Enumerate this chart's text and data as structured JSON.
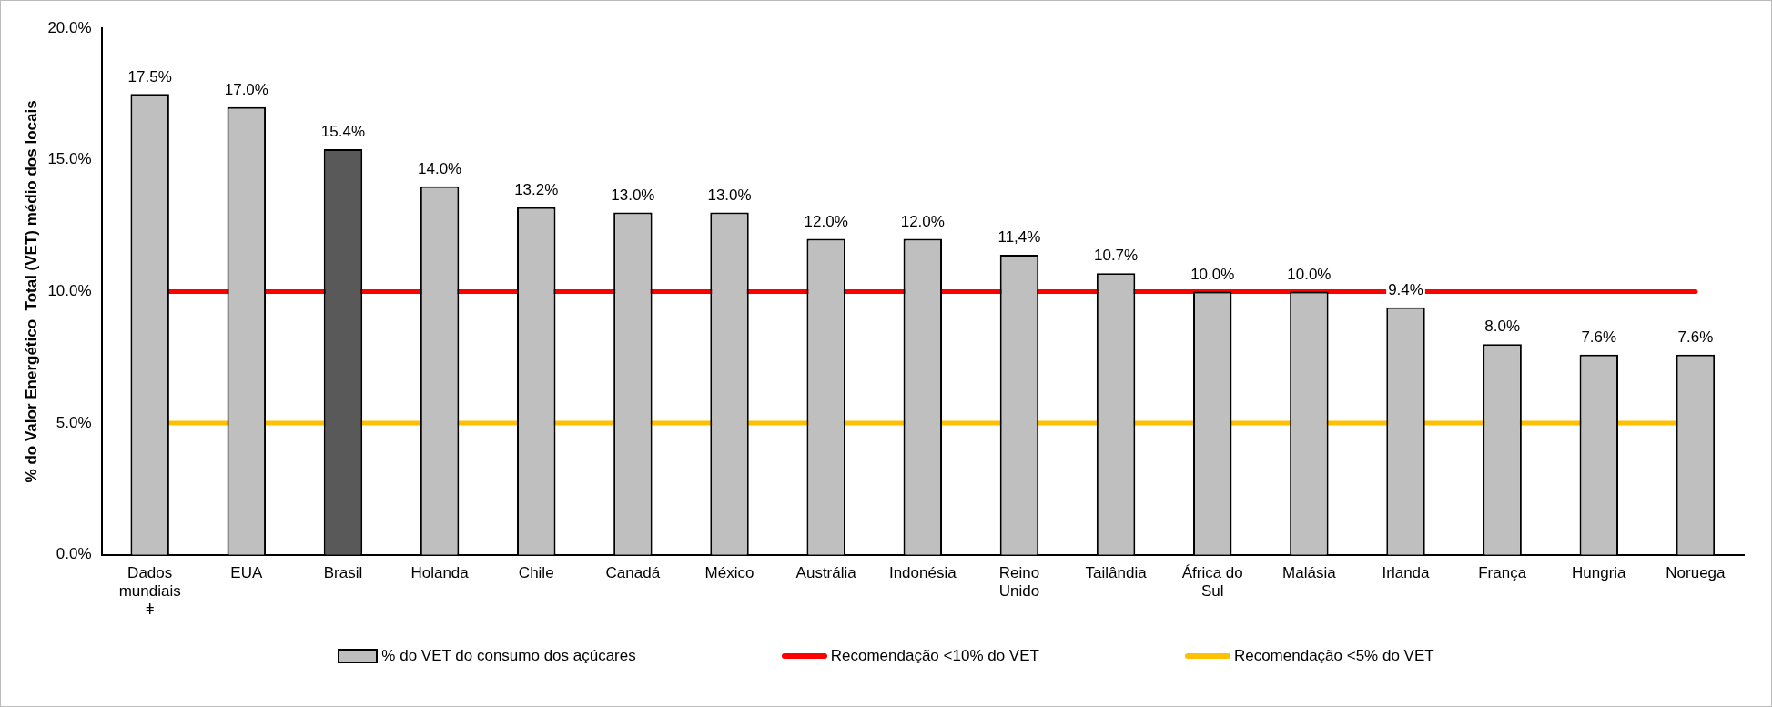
{
  "chart_data": {
    "type": "bar",
    "ylabel": "% do Valor Energético  Total (VET) médio dos locais",
    "categories": [
      "Dados mundiais ǂ",
      "EUA",
      "Brasil",
      "Holanda",
      "Chile",
      "Canadá",
      "México",
      "Austrália",
      "Indonésia",
      "Reino Unido",
      "Tailândia",
      "África do Sul",
      "Malásia",
      "Irlanda",
      "França",
      "Hungria",
      "Noruega"
    ],
    "series": [
      {
        "name": "% do VET do consumo dos açúcares",
        "values": [
          17.5,
          17.0,
          15.4,
          14.0,
          13.2,
          13.0,
          13.0,
          12.0,
          12.0,
          11.4,
          10.7,
          10.0,
          10.0,
          9.4,
          8.0,
          7.6,
          7.6
        ],
        "colors": [
          "#bfbfbf",
          "#bfbfbf",
          "#595959",
          "#bfbfbf",
          "#bfbfbf",
          "#bfbfbf",
          "#bfbfbf",
          "#bfbfbf",
          "#bfbfbf",
          "#bfbfbf",
          "#bfbfbf",
          "#bfbfbf",
          "#bfbfbf",
          "#bfbfbf",
          "#bfbfbf",
          "#bfbfbf",
          "#bfbfbf"
        ],
        "value_labels": [
          "17.5%",
          "17.0%",
          "15.4%",
          "14.0%",
          "13.2%",
          "13.0%",
          "13.0%",
          "12.0%",
          "12.0%",
          "11,4%",
          "10.7%",
          "10.0%",
          "10.0%",
          "9.4%",
          "8.0%",
          "7.6%",
          "7.6%"
        ]
      }
    ],
    "ref_lines": [
      {
        "axis": "y",
        "value": 10,
        "label": "Recomendação <10% do VET",
        "color": "#ff0000"
      },
      {
        "axis": "y",
        "value": 5,
        "label": "Recomendação <5% do VET",
        "color": "#ffc000"
      }
    ],
    "ylim": [
      0,
      20
    ],
    "yticks": [
      {
        "value": 0,
        "label": "0.0%"
      },
      {
        "value": 5,
        "label": "5.0%"
      },
      {
        "value": 10,
        "label": "10.0%"
      },
      {
        "value": 15,
        "label": "15.0%"
      },
      {
        "value": 20,
        "label": "20.0%"
      }
    ],
    "grid": false,
    "legend": "bottom"
  }
}
